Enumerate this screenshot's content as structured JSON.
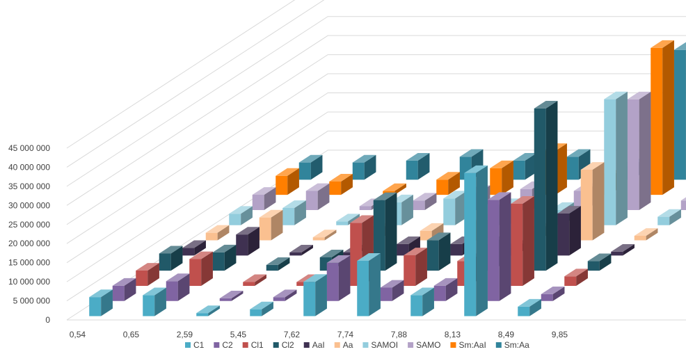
{
  "chart_data": {
    "type": "bar",
    "subtype": "3d-column",
    "title": "",
    "xlabel": "",
    "ylabel": "",
    "ylim": [
      0,
      45000000
    ],
    "yticks": [
      0,
      5000000,
      10000000,
      15000000,
      20000000,
      25000000,
      30000000,
      35000000,
      40000000,
      45000000
    ],
    "ytick_labels": [
      "0",
      "5 000 000",
      "10 000 000",
      "15 000 000",
      "20 000 000",
      "25 000 000",
      "30 000 000",
      "35 000 000",
      "40 000 000",
      "45 000 000"
    ],
    "categories": [
      "0,54",
      "0,65",
      "2,59",
      "5,45",
      "7,62",
      "7,74",
      "7,88",
      "8,13",
      "8,49",
      "9,85"
    ],
    "grid": true,
    "legend_position": "bottom",
    "series": [
      {
        "name": "C1",
        "color": "#4BACC6",
        "values": [
          5000000,
          5500000,
          800000,
          1800000,
          9000000,
          14500000,
          5500000,
          37500000,
          2500000,
          null
        ]
      },
      {
        "name": "C2",
        "color": "#8064A2",
        "values": [
          4000000,
          5200000,
          700000,
          1000000,
          10000000,
          3500000,
          4000000,
          26500000,
          1800000,
          null
        ]
      },
      {
        "name": "Cl1",
        "color": "#C0504D",
        "values": [
          4000000,
          7000000,
          1000000,
          1000000,
          16500000,
          8000000,
          6500000,
          21500000,
          2500000,
          null
        ]
      },
      {
        "name": "Cl2",
        "color": "#215968",
        "values": [
          4500000,
          4800000,
          1500000,
          3500000,
          18500000,
          8000000,
          7000000,
          42500000,
          2500000,
          null
        ]
      },
      {
        "name": "AaI",
        "color": "#3F3151",
        "values": [
          2000000,
          5500000,
          800000,
          800000,
          3000000,
          3000000,
          2000000,
          11000000,
          1000000,
          null
        ]
      },
      {
        "name": "Aa",
        "color": "#FAC090",
        "values": [
          2000000,
          6000000,
          800000,
          2500000,
          2500000,
          5000000,
          2500000,
          18500000,
          1200000,
          null
        ]
      },
      {
        "name": "SAMOI",
        "color": "#93CDDD",
        "values": [
          3000000,
          4500000,
          1000000,
          6000000,
          7000000,
          5000000,
          4000000,
          33000000,
          2200000,
          null
        ]
      },
      {
        "name": "SAMO",
        "color": "#B3A2C7",
        "values": [
          4000000,
          5000000,
          1000000,
          2500000,
          4500000,
          5500000,
          5000000,
          29000000,
          2500000,
          null
        ]
      },
      {
        "name": "Sm:AaI",
        "color": "#FF7F00",
        "values": [
          5000000,
          3500000,
          1000000,
          4000000,
          7000000,
          11500000,
          4500000,
          38500000,
          2500000,
          null
        ]
      },
      {
        "name": "Sm:Aa",
        "color": "#31849B",
        "values": [
          4500000,
          4500000,
          5000000,
          6000000,
          5000000,
          6000000,
          3500000,
          34000000,
          2000000,
          3500000
        ]
      }
    ]
  }
}
